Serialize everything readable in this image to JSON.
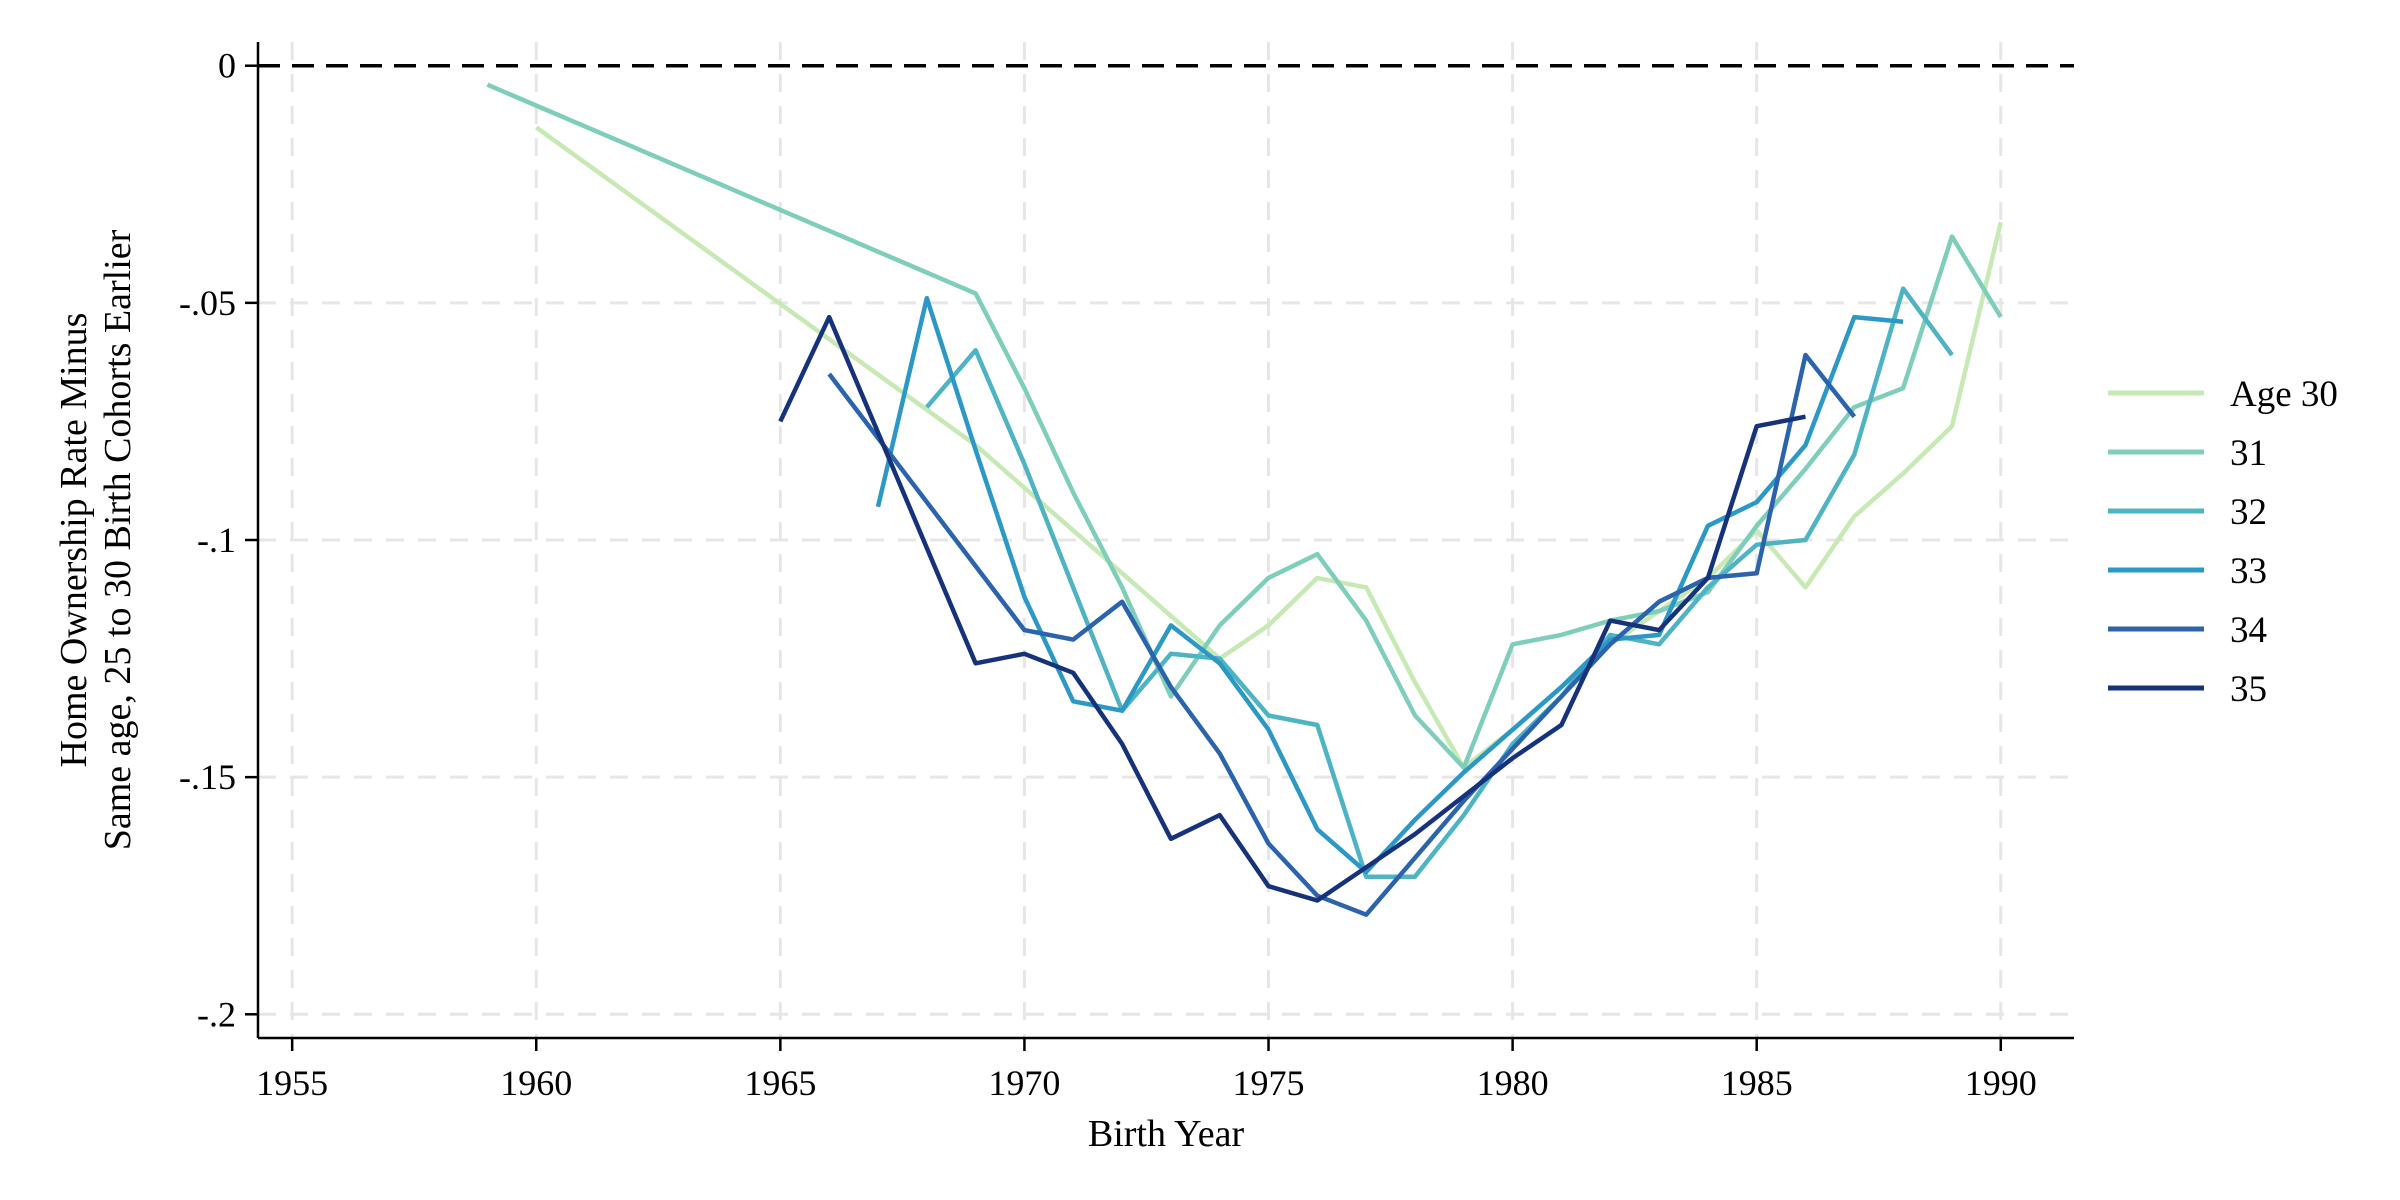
{
  "chart_data": {
    "type": "line",
    "title": "",
    "xlabel": "Birth Year",
    "ylabel_lines": [
      "Home Ownership Rate Minus",
      "Same age, 25 to 30 Birth Cohorts Earlier"
    ],
    "xlim": [
      1954.3,
      1991.5
    ],
    "ylim": [
      -0.205,
      0.005
    ],
    "xticks": [
      1955,
      1960,
      1965,
      1970,
      1975,
      1980,
      1985,
      1990
    ],
    "xtick_labels": [
      "1955",
      "1960",
      "1965",
      "1970",
      "1975",
      "1980",
      "1985",
      "1990"
    ],
    "yticks": [
      0,
      -0.05,
      -0.1,
      -0.15,
      -0.2
    ],
    "ytick_labels": [
      "0",
      "-.05",
      "-.1",
      "-.15",
      "-.2"
    ],
    "grid": true,
    "reference_line": 0,
    "legend_position": "right",
    "series": [
      {
        "name": "Age 30",
        "color": "#c7e9b4",
        "x": [
          1960,
          1969,
          1974,
          1975,
          1976,
          1977,
          1978,
          1979,
          1980,
          1981,
          1982,
          1983,
          1984,
          1985,
          1986,
          1987,
          1988,
          1989,
          1990
        ],
        "y": [
          -0.013,
          -0.08,
          -0.125,
          -0.118,
          -0.108,
          -0.11,
          -0.13,
          -0.148,
          -0.14,
          -0.131,
          -0.122,
          -0.115,
          -0.108,
          -0.098,
          -0.11,
          -0.095,
          -0.086,
          -0.076,
          -0.033
        ]
      },
      {
        "name": "31",
        "color": "#7fcdbb",
        "x": [
          1959,
          1969,
          1970,
          1971,
          1972,
          1973,
          1974,
          1975,
          1976,
          1977,
          1978,
          1979,
          1980,
          1981,
          1982,
          1983,
          1984,
          1985,
          1986,
          1987,
          1988,
          1989,
          1990
        ],
        "y": [
          -0.004,
          -0.048,
          -0.068,
          -0.09,
          -0.11,
          -0.133,
          -0.118,
          -0.108,
          -0.103,
          -0.117,
          -0.137,
          -0.148,
          -0.122,
          -0.12,
          -0.117,
          -0.115,
          -0.111,
          -0.097,
          -0.085,
          -0.072,
          -0.068,
          -0.036,
          -0.053
        ]
      },
      {
        "name": "32",
        "color": "#4eb3c2",
        "x": [
          1968,
          1969,
          1970,
          1971,
          1972,
          1973,
          1974,
          1975,
          1976,
          1977,
          1978,
          1979,
          1980,
          1981,
          1982,
          1983,
          1984,
          1985,
          1986,
          1987,
          1988,
          1989
        ],
        "y": [
          -0.072,
          -0.06,
          -0.084,
          -0.11,
          -0.136,
          -0.124,
          -0.125,
          -0.137,
          -0.139,
          -0.171,
          -0.171,
          -0.158,
          -0.143,
          -0.133,
          -0.12,
          -0.122,
          -0.11,
          -0.101,
          -0.1,
          -0.082,
          -0.047,
          -0.061
        ]
      },
      {
        "name": "33",
        "color": "#2c98c5",
        "x": [
          1967,
          1968,
          1969,
          1970,
          1971,
          1972,
          1973,
          1974,
          1975,
          1976,
          1977,
          1978,
          1979,
          1980,
          1981,
          1982,
          1983,
          1984,
          1985,
          1986,
          1987,
          1988
        ],
        "y": [
          -0.093,
          -0.049,
          -0.081,
          -0.112,
          -0.134,
          -0.136,
          -0.118,
          -0.126,
          -0.14,
          -0.161,
          -0.17,
          -0.159,
          -0.149,
          -0.14,
          -0.131,
          -0.121,
          -0.12,
          -0.097,
          -0.092,
          -0.08,
          -0.053,
          -0.054
        ]
      },
      {
        "name": "34",
        "color": "#2b63ac",
        "x": [
          1966,
          1970,
          1971,
          1972,
          1973,
          1974,
          1975,
          1976,
          1977,
          1978,
          1979,
          1980,
          1981,
          1982,
          1983,
          1984,
          1985,
          1986,
          1987
        ],
        "y": [
          -0.065,
          -0.119,
          -0.121,
          -0.113,
          -0.131,
          -0.145,
          -0.164,
          -0.175,
          -0.179,
          -0.167,
          -0.155,
          -0.144,
          -0.133,
          -0.122,
          -0.113,
          -0.108,
          -0.107,
          -0.061,
          -0.074
        ]
      },
      {
        "name": "35",
        "color": "#16327a",
        "x": [
          1965,
          1966,
          1969,
          1970,
          1971,
          1972,
          1973,
          1974,
          1975,
          1976,
          1977,
          1978,
          1979,
          1980,
          1981,
          1982,
          1983,
          1984,
          1985,
          1986
        ],
        "y": [
          -0.075,
          -0.053,
          -0.126,
          -0.124,
          -0.128,
          -0.143,
          -0.163,
          -0.158,
          -0.173,
          -0.176,
          -0.169,
          -0.162,
          -0.154,
          -0.146,
          -0.139,
          -0.117,
          -0.119,
          -0.108,
          -0.076,
          -0.074
        ]
      }
    ]
  }
}
